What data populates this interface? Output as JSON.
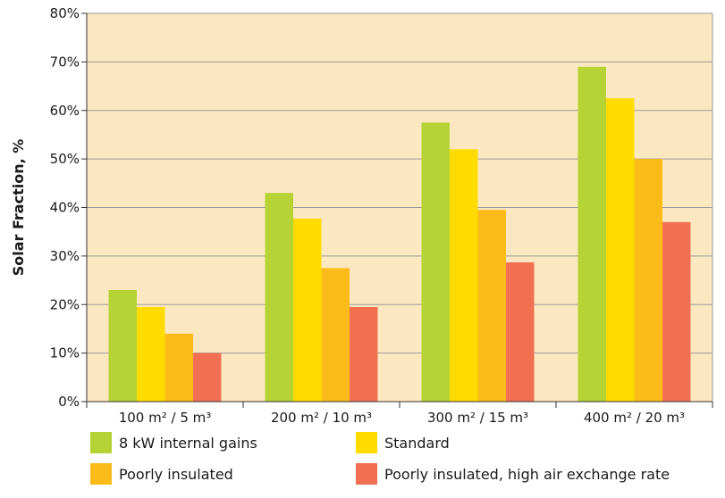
{
  "chart_data": {
    "type": "bar",
    "ylabel": "Solar Fraction, %",
    "xlabel": "",
    "ylim": [
      0,
      80
    ],
    "yticks": [
      0,
      10,
      20,
      30,
      40,
      50,
      60,
      70,
      80
    ],
    "ytick_suffix": "%",
    "categories": [
      "100 m² / 5 m³",
      "200 m² / 10 m³",
      "300 m² / 15 m³",
      "400 m² / 20 m³"
    ],
    "series": [
      {
        "name": "8 kW internal gains",
        "color": "#b5d334",
        "values": [
          23,
          43,
          57.5,
          69
        ]
      },
      {
        "name": "Standard",
        "color": "#ffdc00",
        "values": [
          19.5,
          37.7,
          52,
          62.5
        ]
      },
      {
        "name": "Poorly insulated",
        "color": "#fbbb18",
        "values": [
          14,
          27.5,
          39.5,
          50
        ]
      },
      {
        "name": "Poorly insulated, high air exchange rate",
        "color": "#f26f52",
        "values": [
          10,
          19.5,
          28.7,
          37
        ]
      }
    ],
    "legend_position": "bottom",
    "plot_background": "#fce8c0",
    "grid": "horizontal"
  }
}
